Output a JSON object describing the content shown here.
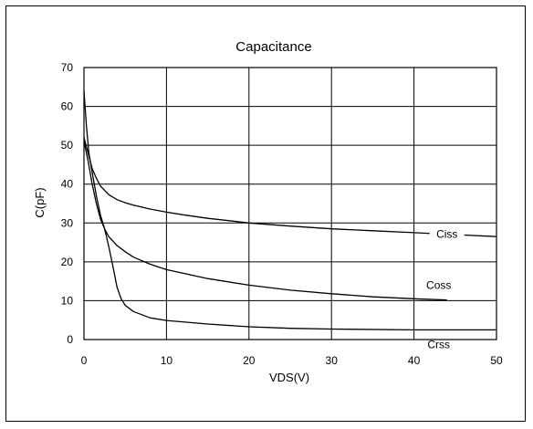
{
  "chart_data": {
    "type": "line",
    "title": "Capacitance",
    "xlabel": "VDS(V)",
    "ylabel": "C(pF)",
    "xlim": [
      0,
      50
    ],
    "ylim": [
      0,
      70
    ],
    "xticks": [
      "0",
      "10",
      "20",
      "30",
      "40",
      "50"
    ],
    "yticks": [
      "0",
      "10",
      "20",
      "30",
      "40",
      "50",
      "60",
      "70"
    ],
    "grid": true,
    "series": [
      {
        "name": "Ciss",
        "x": [
          0,
          0.5,
          1,
          1.5,
          2,
          3,
          4,
          5,
          6,
          8,
          10,
          12,
          15,
          18,
          20,
          25,
          30,
          35,
          40,
          45,
          50
        ],
        "y": [
          52,
          48,
          44,
          41.5,
          39.5,
          37.3,
          36,
          35.2,
          34.6,
          33.6,
          32.8,
          32.1,
          31.2,
          30.5,
          30,
          29.2,
          28.5,
          28,
          27.5,
          27,
          26.5
        ]
      },
      {
        "name": "Coss",
        "x": [
          0,
          0.5,
          1,
          1.5,
          2,
          2.5,
          3,
          4,
          5,
          6,
          8,
          10,
          15,
          20,
          25,
          30,
          35,
          40,
          44
        ],
        "y": [
          51,
          46,
          40,
          35,
          31,
          28.5,
          26.5,
          24.2,
          22.6,
          21.2,
          19.4,
          18,
          15.7,
          14,
          12.7,
          11.8,
          11,
          10.5,
          10.2
        ]
      },
      {
        "name": "Crss",
        "x": [
          0,
          0.3,
          0.6,
          1,
          1.5,
          2,
          2.5,
          3,
          3.5,
          4,
          4.5,
          5,
          6,
          8,
          10,
          15,
          20,
          25,
          30,
          40,
          50
        ],
        "y": [
          64,
          55,
          48,
          43,
          37,
          32,
          28.5,
          24,
          19,
          13.5,
          10.5,
          8.8,
          7.2,
          5.6,
          4.9,
          4,
          3.3,
          2.9,
          2.7,
          2.5,
          2.5
        ]
      }
    ]
  }
}
